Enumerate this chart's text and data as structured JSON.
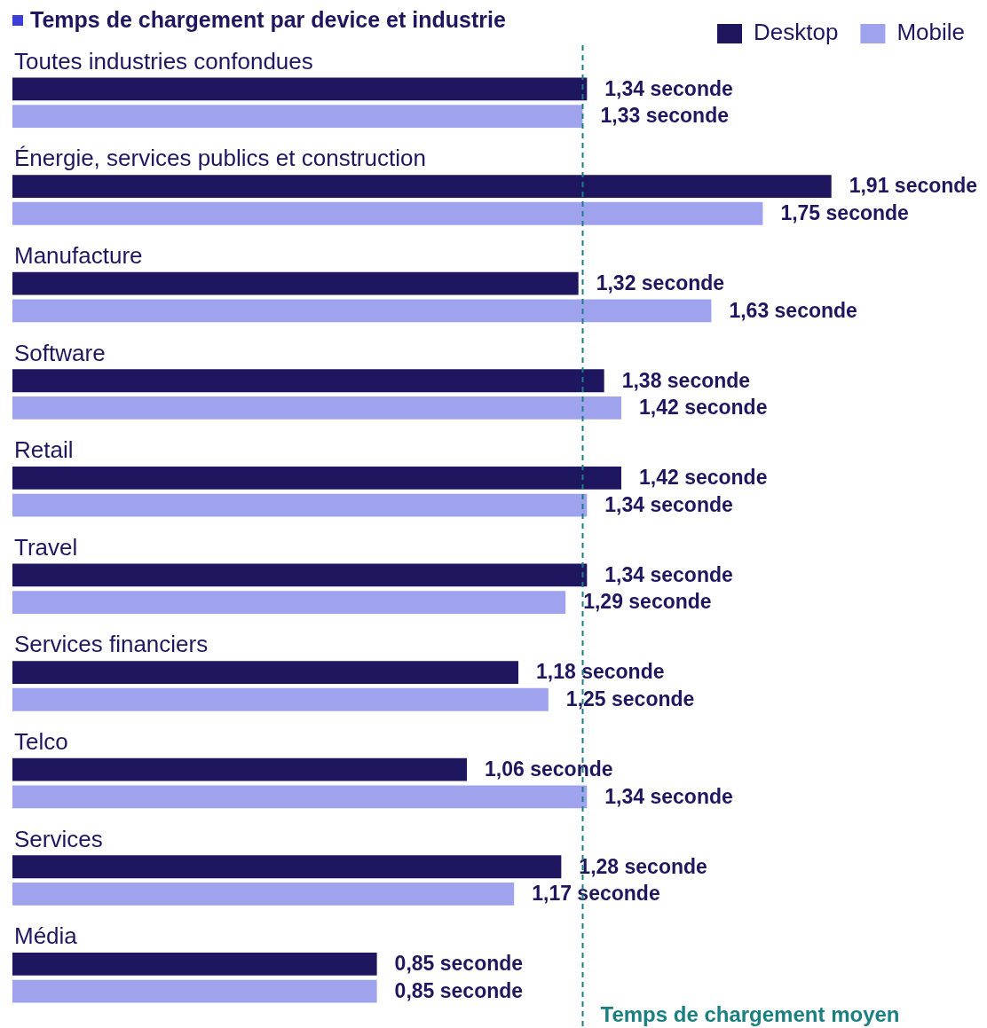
{
  "chart_data": {
    "type": "bar",
    "orientation": "horizontal",
    "title": "Temps de chargement par device et industrie",
    "categories": [
      "Toutes industries confondues",
      "Énergie, services publics et construction",
      "Manufacture",
      "Software",
      "Retail",
      "Travel",
      "Services financiers",
      "Telco",
      "Services",
      "Média"
    ],
    "series": [
      {
        "name": "Desktop",
        "color": "#1e1760",
        "values": [
          1.34,
          1.91,
          1.32,
          1.38,
          1.42,
          1.34,
          1.18,
          1.06,
          1.28,
          0.85
        ],
        "value_labels": [
          "1,34 seconde",
          "1,91 seconde",
          "1,32 seconde",
          "1,38 seconde",
          "1,42 seconde",
          "1,34 seconde",
          "1,18 seconde",
          "1,06 seconde",
          "1,28 seconde",
          "0,85 seconde"
        ]
      },
      {
        "name": "Mobile",
        "color": "#9fa3ee",
        "values": [
          1.33,
          1.75,
          1.63,
          1.42,
          1.34,
          1.29,
          1.25,
          1.34,
          1.17,
          0.85
        ],
        "value_labels": [
          "1,33 seconde",
          "1,75 seconde",
          "1,63 seconde",
          "1,42 seconde",
          "1,34 seconde",
          "1,29 seconde",
          "1,25 seconde",
          "1,34 seconde",
          "1,17 seconde",
          "0,85 seconde"
        ]
      }
    ],
    "legend": "top right",
    "ref_lines": [
      {
        "axis": "x",
        "value": 1.33,
        "label": "Temps de chargement moyen",
        "color": "#1a7f80",
        "line_style": "dashed"
      }
    ]
  }
}
